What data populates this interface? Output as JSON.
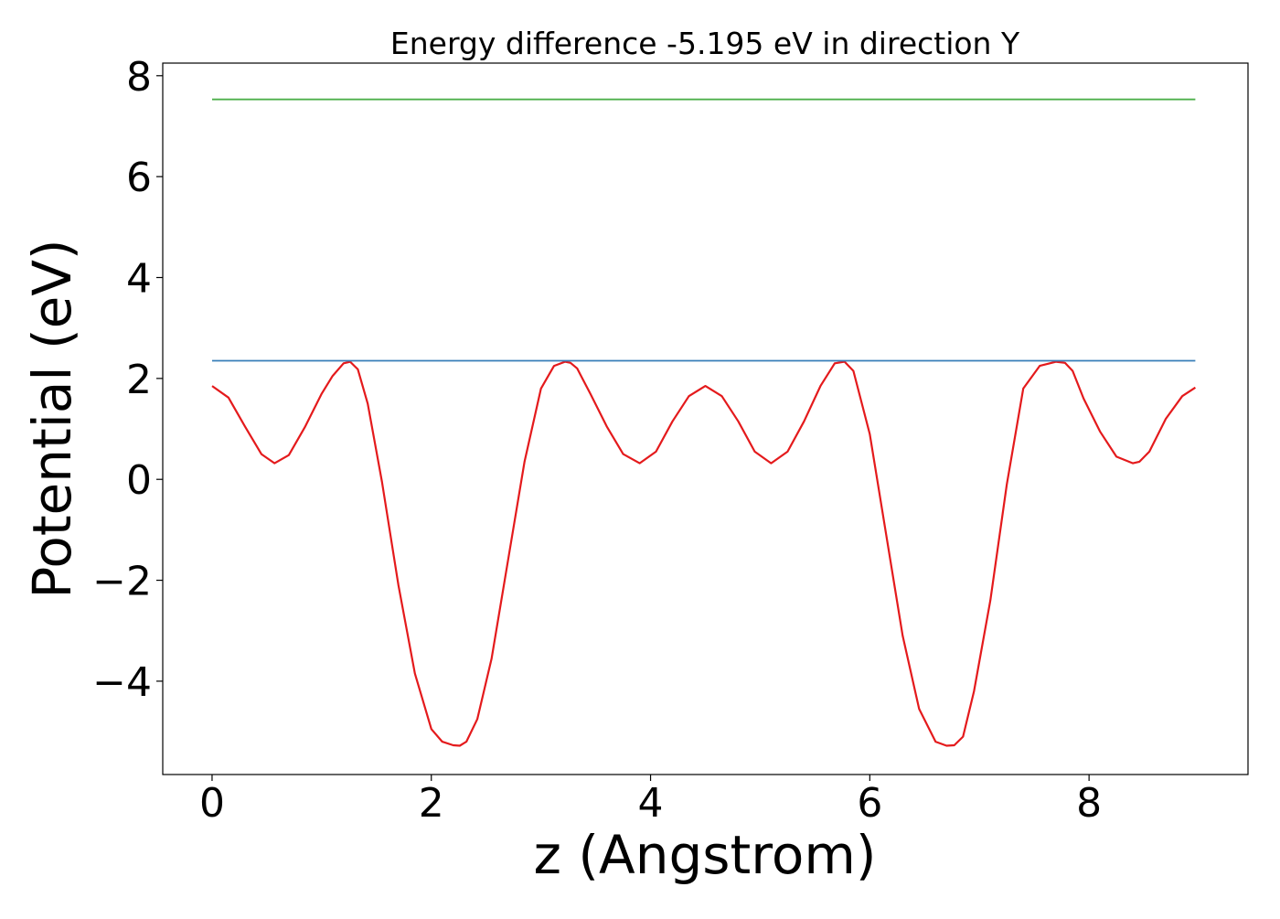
{
  "chart_data": {
    "type": "line",
    "title": "Energy difference -5.195 eV in direction Y",
    "xlabel": "z (Angstrom)",
    "ylabel": "Potential (eV)",
    "xlim": [
      -0.45,
      9.45
    ],
    "ylim": [
      -5.85,
      8.25
    ],
    "x_ticks": [
      0,
      2,
      4,
      6,
      8
    ],
    "x_tick_labels": [
      "0",
      "2",
      "4",
      "6",
      "8"
    ],
    "y_ticks": [
      -4,
      -2,
      0,
      2,
      4,
      6,
      8
    ],
    "y_tick_labels": [
      "−4",
      "−2",
      "0",
      "2",
      "4",
      "6",
      "8"
    ],
    "grid": false,
    "series": [
      {
        "color": "#e41a1c",
        "x": [
          0.0,
          0.15,
          0.3,
          0.45,
          0.57,
          0.7,
          0.85,
          1.0,
          1.1,
          1.2,
          1.26,
          1.33,
          1.42,
          1.55,
          1.7,
          1.85,
          2.0,
          2.1,
          2.2,
          2.26,
          2.32,
          2.42,
          2.55,
          2.7,
          2.85,
          3.0,
          3.12,
          3.22,
          3.27,
          3.33,
          3.45,
          3.6,
          3.75,
          3.9,
          4.05,
          4.2,
          4.35,
          4.5,
          4.65,
          4.8,
          4.95,
          5.1,
          5.25,
          5.4,
          5.55,
          5.68,
          5.77,
          5.85,
          6.0,
          6.15,
          6.3,
          6.45,
          6.6,
          6.7,
          6.77,
          6.85,
          6.95,
          7.1,
          7.25,
          7.4,
          7.55,
          7.7,
          7.78,
          7.85,
          7.95,
          8.1,
          8.25,
          8.4,
          8.46,
          8.55,
          8.7,
          8.85,
          8.97
        ],
        "y": [
          1.85,
          1.62,
          1.05,
          0.5,
          0.32,
          0.48,
          1.05,
          1.7,
          2.05,
          2.3,
          2.33,
          2.18,
          1.5,
          -0.05,
          -2.1,
          -3.85,
          -4.95,
          -5.2,
          -5.27,
          -5.28,
          -5.2,
          -4.75,
          -3.55,
          -1.6,
          0.35,
          1.8,
          2.25,
          2.33,
          2.31,
          2.2,
          1.7,
          1.05,
          0.5,
          0.32,
          0.55,
          1.15,
          1.65,
          1.85,
          1.65,
          1.15,
          0.55,
          0.32,
          0.55,
          1.15,
          1.85,
          2.3,
          2.33,
          2.15,
          0.9,
          -1.1,
          -3.1,
          -4.55,
          -5.2,
          -5.28,
          -5.27,
          -5.1,
          -4.2,
          -2.4,
          -0.1,
          1.8,
          2.25,
          2.33,
          2.31,
          2.15,
          1.6,
          0.95,
          0.45,
          0.32,
          0.35,
          0.55,
          1.2,
          1.65,
          1.82
        ]
      },
      {
        "color": "#377eb8",
        "x": [
          0.0,
          8.97
        ],
        "y": [
          2.35,
          2.35
        ]
      },
      {
        "color": "#4daf4a",
        "x": [
          0.0,
          8.97
        ],
        "y": [
          7.53,
          7.53
        ]
      }
    ]
  }
}
